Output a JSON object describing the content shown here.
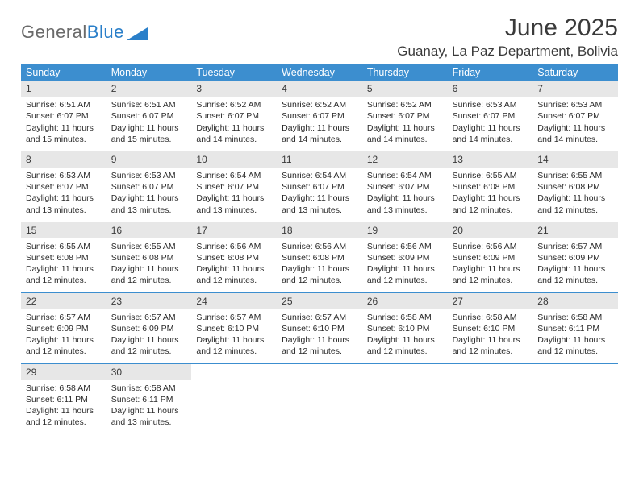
{
  "logo": {
    "word1": "General",
    "word2": "Blue"
  },
  "header": {
    "month_title": "June 2025",
    "location": "Guanay, La Paz Department, Bolivia"
  },
  "colors": {
    "header_blue": "#3c8ecf",
    "daynum_bg": "#e7e7e7",
    "logo_gray": "#6a6a6a",
    "logo_blue": "#2a7fc9",
    "text": "#2a2a2a"
  },
  "layout": {
    "cols": 7,
    "rows": 5
  },
  "weekdays": [
    "Sunday",
    "Monday",
    "Tuesday",
    "Wednesday",
    "Thursday",
    "Friday",
    "Saturday"
  ],
  "weeks": [
    [
      {
        "num": "1",
        "sunrise": "6:51 AM",
        "sunset": "6:07 PM",
        "daylight": "11 hours and 15 minutes."
      },
      {
        "num": "2",
        "sunrise": "6:51 AM",
        "sunset": "6:07 PM",
        "daylight": "11 hours and 15 minutes."
      },
      {
        "num": "3",
        "sunrise": "6:52 AM",
        "sunset": "6:07 PM",
        "daylight": "11 hours and 14 minutes."
      },
      {
        "num": "4",
        "sunrise": "6:52 AM",
        "sunset": "6:07 PM",
        "daylight": "11 hours and 14 minutes."
      },
      {
        "num": "5",
        "sunrise": "6:52 AM",
        "sunset": "6:07 PM",
        "daylight": "11 hours and 14 minutes."
      },
      {
        "num": "6",
        "sunrise": "6:53 AM",
        "sunset": "6:07 PM",
        "daylight": "11 hours and 14 minutes."
      },
      {
        "num": "7",
        "sunrise": "6:53 AM",
        "sunset": "6:07 PM",
        "daylight": "11 hours and 14 minutes."
      }
    ],
    [
      {
        "num": "8",
        "sunrise": "6:53 AM",
        "sunset": "6:07 PM",
        "daylight": "11 hours and 13 minutes."
      },
      {
        "num": "9",
        "sunrise": "6:53 AM",
        "sunset": "6:07 PM",
        "daylight": "11 hours and 13 minutes."
      },
      {
        "num": "10",
        "sunrise": "6:54 AM",
        "sunset": "6:07 PM",
        "daylight": "11 hours and 13 minutes."
      },
      {
        "num": "11",
        "sunrise": "6:54 AM",
        "sunset": "6:07 PM",
        "daylight": "11 hours and 13 minutes."
      },
      {
        "num": "12",
        "sunrise": "6:54 AM",
        "sunset": "6:07 PM",
        "daylight": "11 hours and 13 minutes."
      },
      {
        "num": "13",
        "sunrise": "6:55 AM",
        "sunset": "6:08 PM",
        "daylight": "11 hours and 12 minutes."
      },
      {
        "num": "14",
        "sunrise": "6:55 AM",
        "sunset": "6:08 PM",
        "daylight": "11 hours and 12 minutes."
      }
    ],
    [
      {
        "num": "15",
        "sunrise": "6:55 AM",
        "sunset": "6:08 PM",
        "daylight": "11 hours and 12 minutes."
      },
      {
        "num": "16",
        "sunrise": "6:55 AM",
        "sunset": "6:08 PM",
        "daylight": "11 hours and 12 minutes."
      },
      {
        "num": "17",
        "sunrise": "6:56 AM",
        "sunset": "6:08 PM",
        "daylight": "11 hours and 12 minutes."
      },
      {
        "num": "18",
        "sunrise": "6:56 AM",
        "sunset": "6:08 PM",
        "daylight": "11 hours and 12 minutes."
      },
      {
        "num": "19",
        "sunrise": "6:56 AM",
        "sunset": "6:09 PM",
        "daylight": "11 hours and 12 minutes."
      },
      {
        "num": "20",
        "sunrise": "6:56 AM",
        "sunset": "6:09 PM",
        "daylight": "11 hours and 12 minutes."
      },
      {
        "num": "21",
        "sunrise": "6:57 AM",
        "sunset": "6:09 PM",
        "daylight": "11 hours and 12 minutes."
      }
    ],
    [
      {
        "num": "22",
        "sunrise": "6:57 AM",
        "sunset": "6:09 PM",
        "daylight": "11 hours and 12 minutes."
      },
      {
        "num": "23",
        "sunrise": "6:57 AM",
        "sunset": "6:09 PM",
        "daylight": "11 hours and 12 minutes."
      },
      {
        "num": "24",
        "sunrise": "6:57 AM",
        "sunset": "6:10 PM",
        "daylight": "11 hours and 12 minutes."
      },
      {
        "num": "25",
        "sunrise": "6:57 AM",
        "sunset": "6:10 PM",
        "daylight": "11 hours and 12 minutes."
      },
      {
        "num": "26",
        "sunrise": "6:58 AM",
        "sunset": "6:10 PM",
        "daylight": "11 hours and 12 minutes."
      },
      {
        "num": "27",
        "sunrise": "6:58 AM",
        "sunset": "6:10 PM",
        "daylight": "11 hours and 12 minutes."
      },
      {
        "num": "28",
        "sunrise": "6:58 AM",
        "sunset": "6:11 PM",
        "daylight": "11 hours and 12 minutes."
      }
    ],
    [
      {
        "num": "29",
        "sunrise": "6:58 AM",
        "sunset": "6:11 PM",
        "daylight": "11 hours and 12 minutes."
      },
      {
        "num": "30",
        "sunrise": "6:58 AM",
        "sunset": "6:11 PM",
        "daylight": "11 hours and 13 minutes."
      },
      null,
      null,
      null,
      null,
      null
    ]
  ],
  "labels": {
    "sunrise": "Sunrise: ",
    "sunset": "Sunset: ",
    "daylight": "Daylight: "
  }
}
